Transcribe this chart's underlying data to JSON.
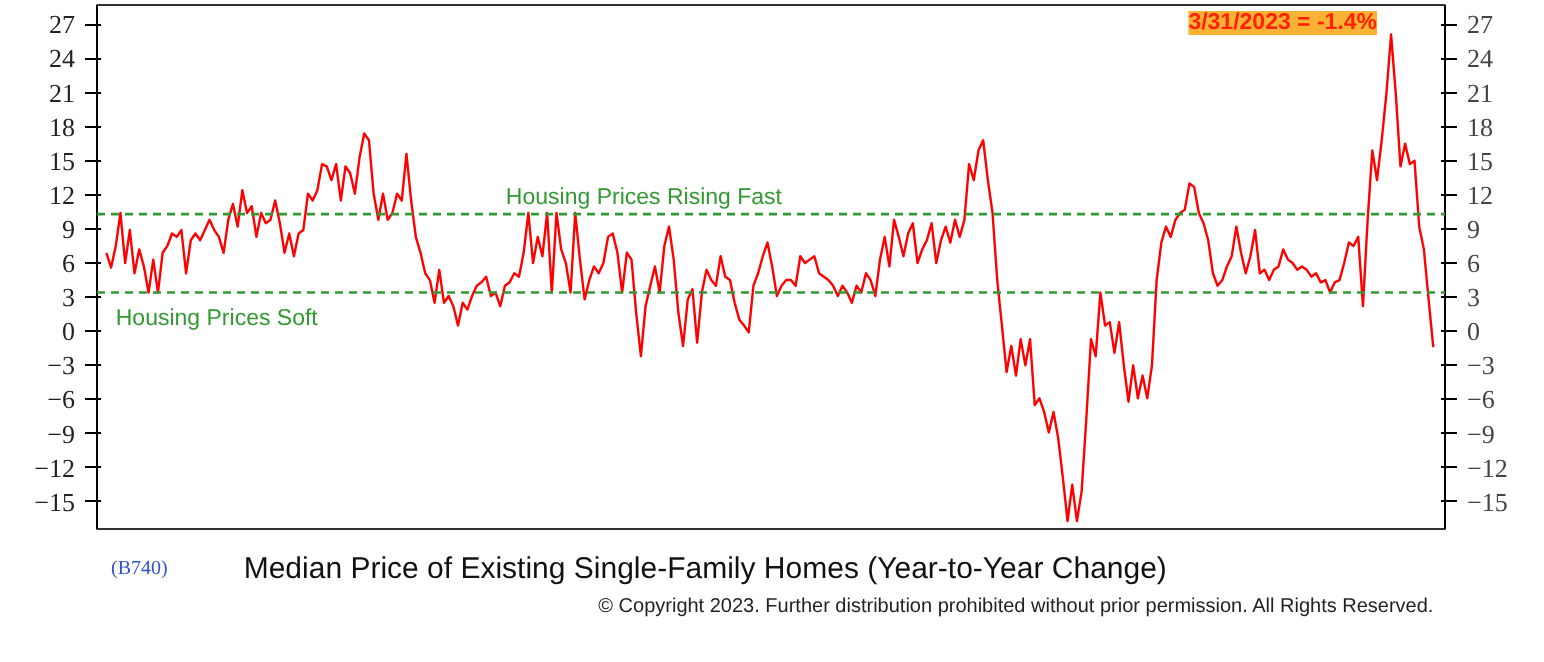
{
  "chart_data": {
    "type": "line",
    "title": "Median Price of Existing Single-Family Homes (Year-to-Year Change)",
    "annotations": [
      "3/31/2023 = -1.4%",
      "(B740)",
      "© Copyright 2023. Further distribution prohibited without prior permission. All Rights Reserved."
    ],
    "categories": [
      null,
      null,
      null,
      null,
      null,
      null,
      null,
      null,
      null,
      null,
      null,
      null,
      null,
      null,
      null,
      null,
      null,
      null,
      null,
      null,
      null,
      null,
      null,
      null,
      null,
      null,
      null,
      null,
      null,
      null,
      null,
      null,
      null,
      null,
      null,
      null,
      null,
      null,
      null,
      null,
      null,
      null,
      null,
      null,
      null,
      null,
      null,
      null,
      null,
      null,
      null,
      null,
      null,
      null,
      null,
      null,
      null,
      null,
      null,
      null,
      null,
      null,
      null,
      null,
      null,
      null,
      null,
      null,
      null,
      null,
      null,
      null,
      null,
      null,
      null,
      null,
      null,
      null,
      null,
      null,
      null,
      null,
      null,
      null,
      null,
      null,
      null,
      null,
      null,
      null,
      null,
      null,
      null,
      null,
      null,
      null,
      null,
      null,
      null,
      null,
      null,
      null,
      null,
      null,
      null,
      null,
      null,
      null,
      null,
      null,
      null,
      null,
      null,
      null,
      null,
      null,
      null,
      null,
      null,
      null,
      null,
      null,
      null,
      null,
      null,
      null,
      null,
      null,
      null,
      null,
      null,
      null,
      null,
      null,
      null,
      null,
      null,
      null,
      null,
      null,
      null,
      null,
      null,
      null,
      null,
      null,
      null,
      null,
      null,
      null,
      null,
      null,
      null,
      null,
      null,
      null,
      null,
      null,
      null,
      null,
      null,
      null,
      null,
      null,
      null,
      null,
      null,
      null,
      null,
      null,
      null,
      null,
      null,
      null,
      null,
      null,
      null,
      null,
      null,
      null,
      null,
      null,
      null,
      null,
      null,
      null,
      null,
      null,
      null,
      null,
      null,
      null,
      null,
      null,
      null,
      null,
      null,
      null,
      null,
      null,
      null,
      null,
      null,
      null,
      null,
      null,
      null,
      null,
      null,
      null,
      null,
      null,
      null,
      null,
      null,
      null,
      null,
      null,
      null,
      null,
      null,
      null,
      null,
      null,
      null,
      null,
      null,
      null,
      null,
      null,
      null,
      null,
      null,
      null,
      null,
      null,
      null,
      null,
      null,
      null,
      null,
      null,
      null,
      null,
      null,
      null,
      null,
      null,
      null,
      null,
      null,
      null,
      null,
      null,
      null,
      null,
      null,
      null,
      null,
      null,
      null,
      null,
      null,
      null,
      null,
      null,
      null,
      null,
      null,
      null,
      null,
      null,
      null,
      null,
      null,
      null,
      null,
      null,
      null,
      null,
      null,
      null,
      null,
      null
    ],
    "series": [
      {
        "color": "#ff0000",
        "values": [
          6.9,
          5.6,
          7.5,
          10.4,
          6.0,
          8.9,
          5.1,
          7.2,
          5.7,
          3.4,
          6.3,
          3.4,
          6.9,
          7.5,
          8.6,
          8.3,
          8.9,
          5.1,
          8.0,
          8.6,
          8.0,
          8.9,
          9.8,
          8.9,
          8.3,
          6.9,
          9.8,
          11.2,
          9.2,
          12.4,
          10.4,
          11.0,
          8.3,
          10.4,
          9.5,
          9.8,
          11.5,
          9.5,
          6.9,
          8.6,
          6.6,
          8.6,
          8.9,
          12.1,
          11.5,
          12.4,
          14.7,
          14.5,
          13.3,
          14.7,
          11.5,
          14.5,
          13.9,
          12.1,
          15.3,
          17.4,
          16.8,
          12.1,
          9.8,
          12.1,
          9.8,
          10.4,
          12.1,
          11.5,
          15.6,
          11.5,
          8.3,
          6.9,
          5.1,
          4.5,
          2.5,
          5.4,
          2.5,
          3.1,
          2.2,
          0.5,
          2.5,
          1.9,
          3.1,
          4.0,
          4.3,
          4.8,
          3.1,
          3.4,
          2.2,
          4.0,
          4.3,
          5.1,
          4.8,
          6.9,
          10.4,
          6.0,
          8.3,
          6.6,
          10.4,
          3.4,
          10.4,
          7.2,
          6.0,
          3.4,
          10.4,
          6.3,
          2.8,
          4.5,
          5.7,
          5.1,
          6.0,
          8.3,
          8.6,
          6.9,
          3.4,
          6.9,
          6.3,
          1.6,
          -2.2,
          2.2,
          4.0,
          5.7,
          3.4,
          7.5,
          9.2,
          6.3,
          1.6,
          -1.3,
          2.8,
          3.7,
          -1.0,
          3.4,
          5.4,
          4.5,
          4.0,
          6.6,
          4.8,
          4.5,
          2.5,
          1.0,
          0.5,
          -0.1,
          4.0,
          5.1,
          6.6,
          7.8,
          5.7,
          3.1,
          4.0,
          4.5,
          4.5,
          4.0,
          6.6,
          6.0,
          6.3,
          6.6,
          5.1,
          4.8,
          4.5,
          4.0,
          3.1,
          4.0,
          3.4,
          2.5,
          4.0,
          3.4,
          5.1,
          4.5,
          3.1,
          6.3,
          8.3,
          5.7,
          9.8,
          8.3,
          6.6,
          8.6,
          9.5,
          6.0,
          7.2,
          8.0,
          9.5,
          6.0,
          8.0,
          9.2,
          7.8,
          9.8,
          8.3,
          9.8,
          14.7,
          13.3,
          15.9,
          16.8,
          13.3,
          10.4,
          4.5,
          0.5,
          -3.6,
          -1.3,
          -3.9,
          -0.7,
          -3.0,
          -0.7,
          -6.5,
          -5.9,
          -7.1,
          -8.9,
          -7.1,
          -9.4,
          -12.9,
          -16.7,
          -13.5,
          -16.7,
          -14.1,
          -7.7,
          -0.7,
          -2.2,
          3.4,
          0.5,
          0.8,
          -1.9,
          0.8,
          -3.0,
          -6.2,
          -3.0,
          -5.9,
          -3.9,
          -5.9,
          -3.0,
          4.5,
          7.8,
          9.2,
          8.3,
          9.8,
          10.4,
          10.7,
          13.0,
          12.7,
          10.4,
          9.5,
          8.0,
          5.1,
          4.0,
          4.5,
          5.7,
          6.6,
          9.2,
          6.9,
          5.1,
          6.6,
          8.9,
          5.1,
          5.4,
          4.5,
          5.4,
          5.7,
          7.2,
          6.3,
          6.0,
          5.4,
          5.7,
          5.4,
          4.8,
          5.1,
          4.3,
          4.5,
          3.4,
          4.3,
          4.5,
          6.0,
          7.8,
          7.5,
          8.3,
          2.2,
          9.8,
          15.9,
          13.3,
          16.8,
          20.9,
          26.1,
          20.9,
          14.5,
          16.5,
          14.7,
          15.0,
          9.2,
          7.2,
          2.8,
          -1.4
        ]
      }
    ],
    "ylim": [
      -17.4,
      28.7
    ],
    "yticks": [
      -15,
      -12,
      -9,
      -6,
      -3,
      0,
      3,
      6,
      9,
      12,
      15,
      18,
      21,
      24,
      27
    ],
    "y2lim": [
      -17.4,
      28.7
    ],
    "y2ticks": [
      -15,
      -12,
      -9,
      -6,
      -3,
      0,
      3,
      6,
      9,
      12,
      15,
      18,
      21,
      24,
      27
    ],
    "tick_labels": "y",
    "ref_lines": [
      {
        "axis": "y",
        "value": 10.3,
        "label": "Housing Prices Rising Fast",
        "color": "#339933",
        "line_style": "dashed"
      },
      {
        "axis": "y",
        "value": 3.4,
        "label": "Housing Prices Soft",
        "color": "#339933",
        "line_style": "dashed"
      }
    ]
  }
}
